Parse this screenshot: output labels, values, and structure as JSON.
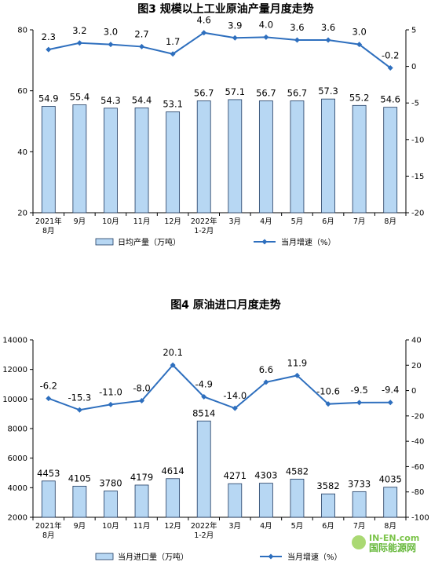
{
  "chart_data": [
    {
      "type": "bar",
      "title": "图3 规模以上工业原油产量月度走势",
      "categories": [
        "2021年\n8月",
        "9月",
        "10月",
        "11月",
        "12月",
        "2022年\n1-2月",
        "3月",
        "4月",
        "5月",
        "6月",
        "7月",
        "8月"
      ],
      "series": [
        {
          "name": "日均产量（万吨）",
          "kind": "bar",
          "axis": "left",
          "values": [
            54.9,
            55.4,
            54.3,
            54.4,
            53.1,
            56.7,
            57.1,
            56.7,
            56.7,
            57.3,
            55.2,
            54.6
          ]
        },
        {
          "name": "当月增速（%）",
          "kind": "line",
          "axis": "right",
          "values": [
            2.3,
            3.2,
            3.0,
            2.7,
            1.7,
            4.6,
            3.9,
            4.0,
            3.6,
            3.6,
            3.0,
            -0.2
          ]
        }
      ],
      "y_left": {
        "min": 20,
        "max": 80,
        "ticks": [
          "20",
          "40",
          "60",
          "80"
        ]
      },
      "y_right": {
        "min": -20,
        "max": 5,
        "ticks": [
          "5",
          "0",
          "-5",
          "-10",
          "-15",
          "-20"
        ]
      },
      "bar_labels": [
        "54.9",
        "55.4",
        "54.3",
        "54.4",
        "53.1",
        "56.7",
        "57.1",
        "56.7",
        "56.7",
        "57.3",
        "55.2",
        "54.6"
      ],
      "line_labels": [
        "2.3",
        "3.2",
        "3.0",
        "2.7",
        "1.7",
        "4.6",
        "3.9",
        "4.0",
        "3.6",
        "3.6",
        "3.0",
        "-0.2"
      ],
      "legend": [
        "日均产量（万吨）",
        "当月增速（%）"
      ],
      "legend_position": "bottom"
    },
    {
      "type": "bar",
      "title": "图4 原油进口月度走势",
      "categories": [
        "2021年\n8月",
        "9月",
        "10月",
        "11月",
        "12月",
        "2022年\n1-2月",
        "3月",
        "4月",
        "5月",
        "6月",
        "7月",
        "8月"
      ],
      "series": [
        {
          "name": "当月进口量（万吨）",
          "kind": "bar",
          "axis": "left",
          "values": [
            4453,
            4105,
            3780,
            4179,
            4614,
            8514,
            4271,
            4303,
            4582,
            3582,
            3733,
            4035
          ]
        },
        {
          "name": "当月增速（%）",
          "kind": "line",
          "axis": "right",
          "values": [
            -6.2,
            -15.3,
            -11.0,
            -8.0,
            20.1,
            -4.9,
            -14.0,
            6.6,
            11.9,
            -10.6,
            -9.5,
            -9.4
          ]
        }
      ],
      "y_left": {
        "min": 2000,
        "max": 14000,
        "ticks": [
          "2000",
          "4000",
          "6000",
          "8000",
          "10000",
          "12000",
          "14000"
        ]
      },
      "y_right": {
        "min": -100,
        "max": 40,
        "ticks": [
          "40",
          "20",
          "0",
          "-20",
          "-40",
          "-60",
          "-80",
          "-100"
        ]
      },
      "bar_labels": [
        "4453",
        "4105",
        "3780",
        "4179",
        "4614",
        "8514",
        "4271",
        "4303",
        "4582",
        "3582",
        "3733",
        "4035"
      ],
      "line_labels": [
        "-6.2",
        "-15.3",
        "-11.0",
        "-8.0",
        "20.1",
        "-4.9",
        "-14.0",
        "6.6",
        "11.9",
        "-10.6",
        "-9.5",
        "-9.4"
      ],
      "legend": [
        "当月进口量（万吨）",
        "当月增速（%）"
      ],
      "legend_position": "bottom"
    }
  ],
  "colors": {
    "bar_fill": "#b7d7f3",
    "bar_stroke": "#1f3a60",
    "line": "#2e6fbe",
    "axis": "#000000"
  },
  "watermark": {
    "text": "IN-EN.com",
    "text_cn": "国际能源网"
  }
}
